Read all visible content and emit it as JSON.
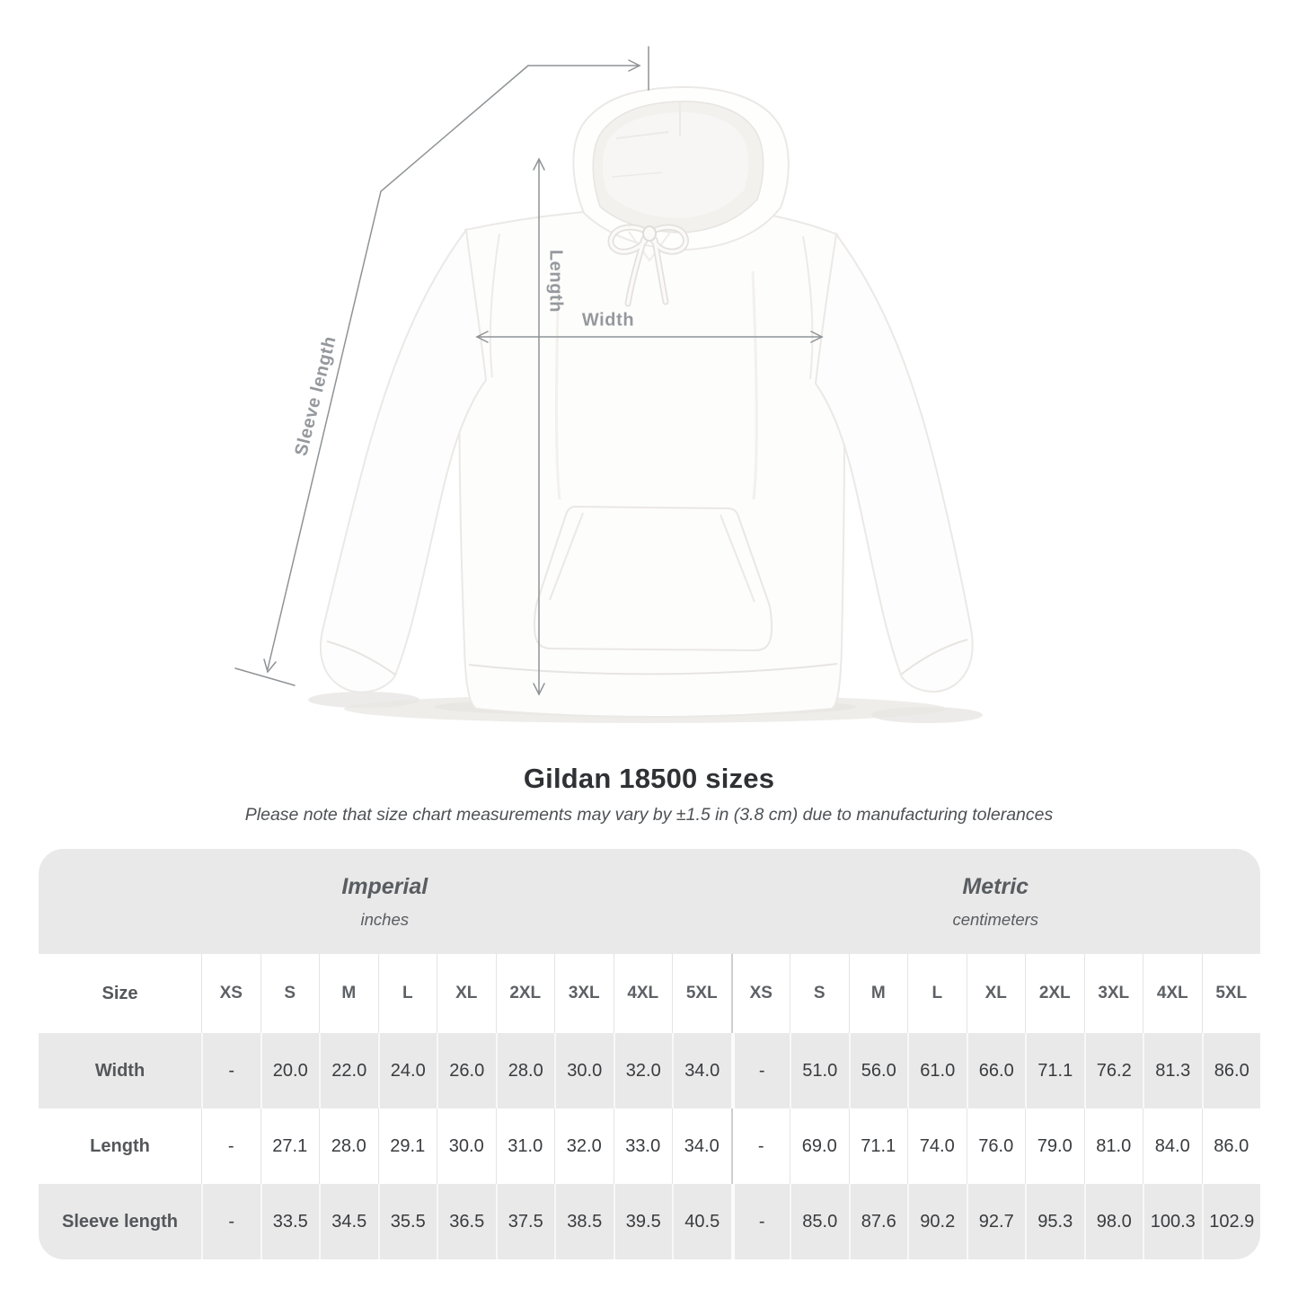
{
  "title": "Gildan 18500 sizes",
  "subtitle": "Please note that size chart measurements may vary by ±1.5 in (3.8 cm) due to manufacturing tolerances",
  "figure": {
    "length_label": "Length",
    "width_label": "Width",
    "sleeve_label": "Sleeve length"
  },
  "colors": {
    "table_band_gray": "#e9e9e9",
    "measure_line_gray": "#8f9396",
    "measure_label_gray": "#95999d",
    "value_text": "#393b3e"
  },
  "chart_data": {
    "type": "table",
    "title": "Gildan 18500 sizes",
    "note": "Please note that size chart measurements may vary by ±1.5 in (3.8 cm) due to manufacturing tolerances",
    "size_label": "Size",
    "sizes": [
      "XS",
      "S",
      "M",
      "L",
      "XL",
      "2XL",
      "3XL",
      "4XL",
      "5XL"
    ],
    "sections": [
      {
        "name": "Imperial",
        "unit": "inches"
      },
      {
        "name": "Metric",
        "unit": "centimeters"
      }
    ],
    "measurements": [
      {
        "label": "Width",
        "imperial": [
          "-",
          "20.0",
          "22.0",
          "24.0",
          "26.0",
          "28.0",
          "30.0",
          "32.0",
          "34.0"
        ],
        "metric": [
          "-",
          "51.0",
          "56.0",
          "61.0",
          "66.0",
          "71.1",
          "76.2",
          "81.3",
          "86.0"
        ]
      },
      {
        "label": "Length",
        "imperial": [
          "-",
          "27.1",
          "28.0",
          "29.1",
          "30.0",
          "31.0",
          "32.0",
          "33.0",
          "34.0"
        ],
        "metric": [
          "-",
          "69.0",
          "71.1",
          "74.0",
          "76.0",
          "79.0",
          "81.0",
          "84.0",
          "86.0"
        ]
      },
      {
        "label": "Sleeve length",
        "imperial": [
          "-",
          "33.5",
          "34.5",
          "35.5",
          "36.5",
          "37.5",
          "38.5",
          "39.5",
          "40.5"
        ],
        "metric": [
          "-",
          "85.0",
          "87.6",
          "90.2",
          "92.7",
          "95.3",
          "98.0",
          "100.3",
          "102.9"
        ]
      }
    ]
  }
}
